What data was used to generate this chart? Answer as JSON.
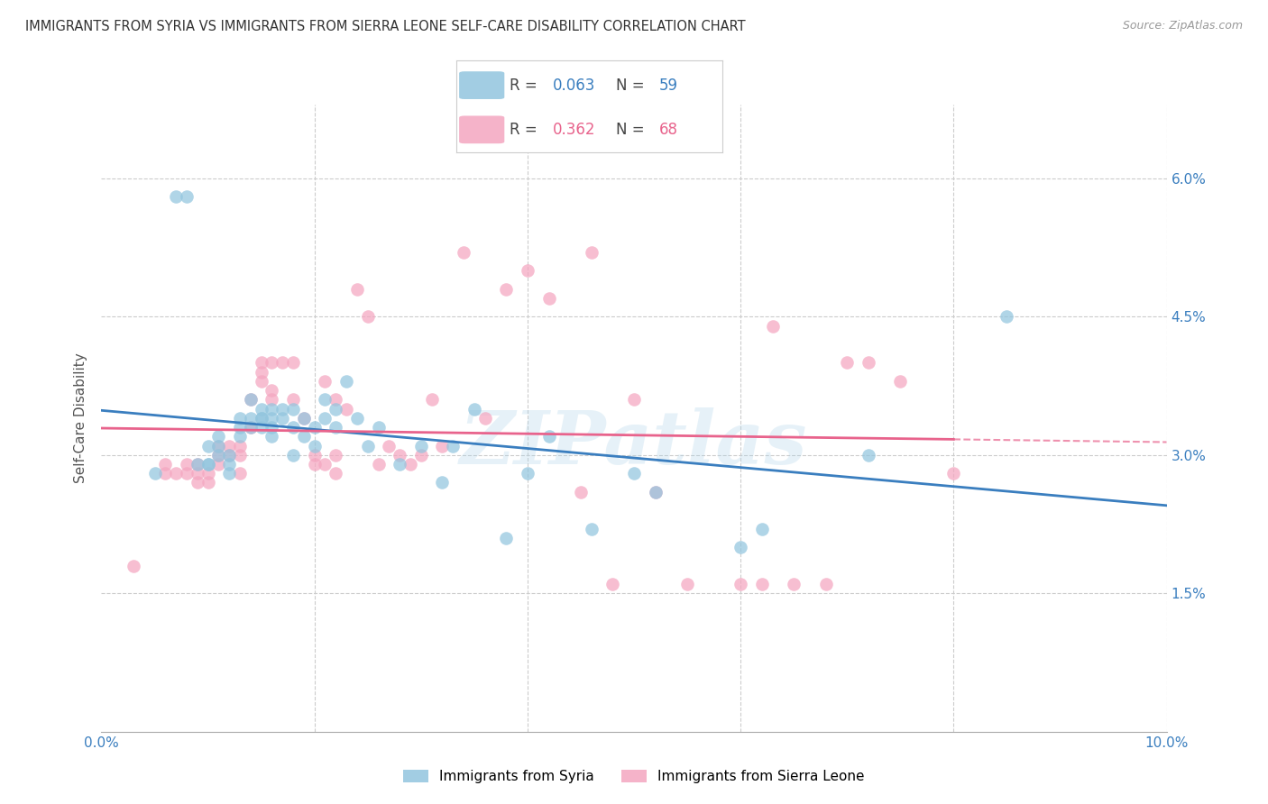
{
  "title": "IMMIGRANTS FROM SYRIA VS IMMIGRANTS FROM SIERRA LEONE SELF-CARE DISABILITY CORRELATION CHART",
  "source": "Source: ZipAtlas.com",
  "ylabel": "Self-Care Disability",
  "xmin": 0.0,
  "xmax": 0.1,
  "ymin": 0.0,
  "ymax": 0.068,
  "yticks": [
    0.015,
    0.03,
    0.045,
    0.06
  ],
  "ytick_labels": [
    "1.5%",
    "3.0%",
    "4.5%",
    "6.0%"
  ],
  "xticks": [
    0.0,
    0.02,
    0.04,
    0.06,
    0.08,
    0.1
  ],
  "xtick_labels": [
    "0.0%",
    "",
    "",
    "",
    "",
    "10.0%"
  ],
  "legend_syria_R": "0.063",
  "legend_syria_N": "59",
  "legend_sierra_R": "0.362",
  "legend_sierra_N": "68",
  "color_syria": "#92c5de",
  "color_sierra": "#f4a6c0",
  "color_syria_line": "#3a7ebf",
  "color_sierra_line": "#e8638c",
  "watermark": "ZIPatlas",
  "syria_x": [
    0.005,
    0.007,
    0.008,
    0.009,
    0.01,
    0.01,
    0.01,
    0.011,
    0.011,
    0.011,
    0.012,
    0.012,
    0.012,
    0.013,
    0.013,
    0.013,
    0.014,
    0.014,
    0.014,
    0.015,
    0.015,
    0.015,
    0.015,
    0.016,
    0.016,
    0.016,
    0.016,
    0.017,
    0.017,
    0.018,
    0.018,
    0.018,
    0.019,
    0.019,
    0.02,
    0.02,
    0.021,
    0.021,
    0.022,
    0.022,
    0.023,
    0.024,
    0.025,
    0.026,
    0.028,
    0.03,
    0.032,
    0.033,
    0.035,
    0.038,
    0.04,
    0.042,
    0.046,
    0.05,
    0.052,
    0.06,
    0.062,
    0.072,
    0.085
  ],
  "syria_y": [
    0.028,
    0.058,
    0.058,
    0.029,
    0.029,
    0.029,
    0.031,
    0.03,
    0.031,
    0.032,
    0.028,
    0.029,
    0.03,
    0.032,
    0.033,
    0.034,
    0.033,
    0.034,
    0.036,
    0.033,
    0.034,
    0.034,
    0.035,
    0.032,
    0.033,
    0.034,
    0.035,
    0.034,
    0.035,
    0.03,
    0.033,
    0.035,
    0.032,
    0.034,
    0.031,
    0.033,
    0.036,
    0.034,
    0.033,
    0.035,
    0.038,
    0.034,
    0.031,
    0.033,
    0.029,
    0.031,
    0.027,
    0.031,
    0.035,
    0.021,
    0.028,
    0.032,
    0.022,
    0.028,
    0.026,
    0.02,
    0.022,
    0.03,
    0.045
  ],
  "sierra_x": [
    0.003,
    0.006,
    0.006,
    0.007,
    0.008,
    0.008,
    0.009,
    0.009,
    0.009,
    0.01,
    0.01,
    0.011,
    0.011,
    0.011,
    0.012,
    0.012,
    0.013,
    0.013,
    0.013,
    0.014,
    0.014,
    0.015,
    0.015,
    0.015,
    0.016,
    0.016,
    0.016,
    0.017,
    0.018,
    0.018,
    0.019,
    0.02,
    0.02,
    0.021,
    0.021,
    0.022,
    0.022,
    0.022,
    0.023,
    0.024,
    0.025,
    0.026,
    0.027,
    0.028,
    0.029,
    0.03,
    0.031,
    0.032,
    0.034,
    0.036,
    0.038,
    0.04,
    0.042,
    0.045,
    0.046,
    0.048,
    0.05,
    0.052,
    0.055,
    0.06,
    0.062,
    0.063,
    0.065,
    0.068,
    0.07,
    0.072,
    0.075,
    0.08
  ],
  "sierra_y": [
    0.018,
    0.028,
    0.029,
    0.028,
    0.028,
    0.029,
    0.027,
    0.028,
    0.029,
    0.027,
    0.028,
    0.029,
    0.03,
    0.031,
    0.03,
    0.031,
    0.028,
    0.03,
    0.031,
    0.033,
    0.036,
    0.038,
    0.039,
    0.04,
    0.036,
    0.037,
    0.04,
    0.04,
    0.036,
    0.04,
    0.034,
    0.029,
    0.03,
    0.038,
    0.029,
    0.028,
    0.03,
    0.036,
    0.035,
    0.048,
    0.045,
    0.029,
    0.031,
    0.03,
    0.029,
    0.03,
    0.036,
    0.031,
    0.052,
    0.034,
    0.048,
    0.05,
    0.047,
    0.026,
    0.052,
    0.016,
    0.036,
    0.026,
    0.016,
    0.016,
    0.016,
    0.044,
    0.016,
    0.016,
    0.04,
    0.04,
    0.038,
    0.028
  ]
}
